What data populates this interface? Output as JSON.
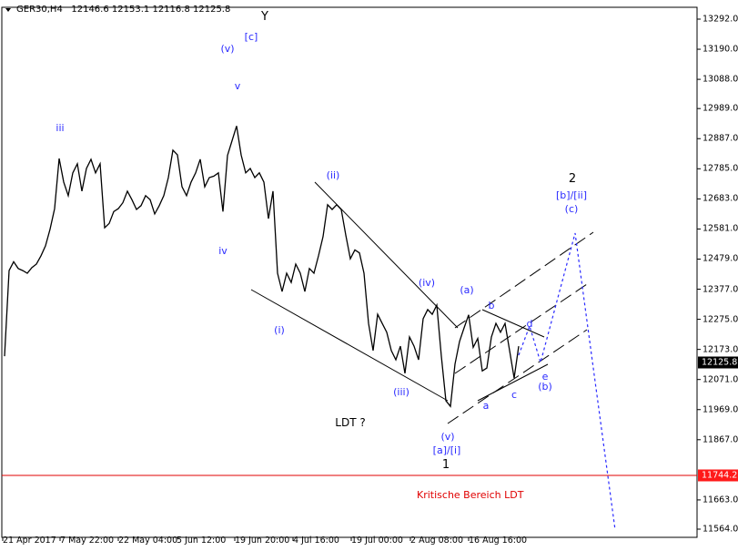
{
  "header": {
    "symbol": "GER30,H4",
    "open": "12146.6",
    "high": "12153.1",
    "low": "12116.8",
    "close": "12125.8"
  },
  "colors": {
    "price": "#000000",
    "wave_labels": "#2a2aff",
    "critical": "#e00000",
    "current_tag": "#000000"
  },
  "chart_data": {
    "type": "line",
    "price_axis_ticks": [
      "13292.0",
      "13190.0",
      "13088.0",
      "12989.0",
      "12887.0",
      "12785.0",
      "12683.0",
      "12581.0",
      "12479.0",
      "12377.0",
      "12275.0",
      "12173.0",
      "12071.0",
      "11969.0",
      "11867.0",
      "11765.0",
      "11663.0",
      "11564.0"
    ],
    "ylim": [
      11564,
      13292
    ],
    "time_axis_ticks": [
      "21 Apr 2017",
      "7 May 22:00",
      "22 May 04:00",
      "5 Jun 12:00",
      "19 Jun 20:00",
      "4 Jul 16:00",
      "19 Jul 00:00",
      "2 Aug 08:00",
      "16 Aug 16:00"
    ],
    "current_price": "12125.8",
    "critical_level": "11744.2",
    "critical_label": "Kritische Bereich LDT",
    "close_series": [
      12150,
      12440,
      12470,
      12447,
      12440,
      12431,
      12450,
      12462,
      12490,
      12524,
      12580,
      12650,
      12820,
      12740,
      12694,
      12771,
      12802,
      12709,
      12786,
      12817,
      12771,
      12802,
      12585,
      12600,
      12640,
      12650,
      12670,
      12709,
      12680,
      12647,
      12660,
      12694,
      12680,
      12632,
      12660,
      12694,
      12755,
      12848,
      12832,
      12724,
      12694,
      12740,
      12771,
      12817,
      12724,
      12755,
      12760,
      12771,
      12640,
      12830,
      12880,
      12930,
      12832,
      12771,
      12786,
      12755,
      12771,
      12740,
      12616,
      12709,
      12431,
      12369,
      12431,
      12400,
      12462,
      12431,
      12369,
      12447,
      12431,
      12490,
      12555,
      12663,
      12647,
      12663,
      12647,
      12560,
      12480,
      12510,
      12500,
      12431,
      12261,
      12169,
      12292,
      12261,
      12231,
      12169,
      12138,
      12184,
      12092,
      12215,
      12184,
      12138,
      12277,
      12308,
      12292,
      12323,
      12150,
      11999,
      11980,
      12123,
      12200,
      12246,
      12290,
      12180,
      12210,
      12100,
      12110,
      12215,
      12261,
      12231,
      12261,
      12169,
      12076,
      12184
    ]
  },
  "wave_labels": {
    "Y": "Y",
    "c_bracket": "[c]",
    "v_paren": "(v)",
    "v": "v",
    "iii": "iii",
    "iv": "iv",
    "i_paren": "(i)",
    "ii_paren": "(ii)",
    "iii_paren": "(iii)",
    "iv_paren": "(iv)",
    "v_paren2": "(v)",
    "ai": "[a]/[i]",
    "one": "1",
    "ldt": "LDT ?",
    "a_paren": "(a)",
    "b": "b",
    "d": "d",
    "a": "a",
    "c": "c",
    "e": "e",
    "b_paren": "(b)",
    "two": "2",
    "bii": "[b]/[ii]",
    "c_paren": "(c)"
  }
}
